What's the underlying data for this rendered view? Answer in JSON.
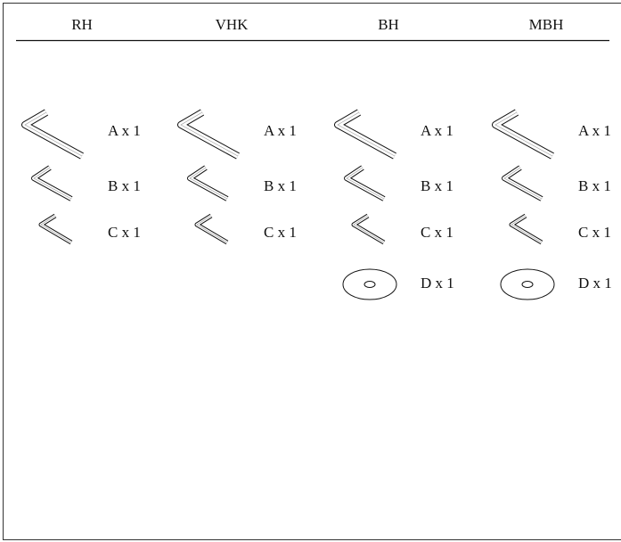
{
  "columns": [
    {
      "title": "RH",
      "items": [
        "A x 1",
        "B x 1",
        "C x 1"
      ]
    },
    {
      "title": "VHK",
      "items": [
        "A x 1",
        "B x 1",
        "C x 1"
      ]
    },
    {
      "title": "BH",
      "items": [
        "A x 1",
        "B x 1",
        "C x 1",
        "D x 1"
      ]
    },
    {
      "title": "MBH",
      "items": [
        "A x 1",
        "B x 1",
        "C x 1",
        "D x 1"
      ]
    }
  ]
}
